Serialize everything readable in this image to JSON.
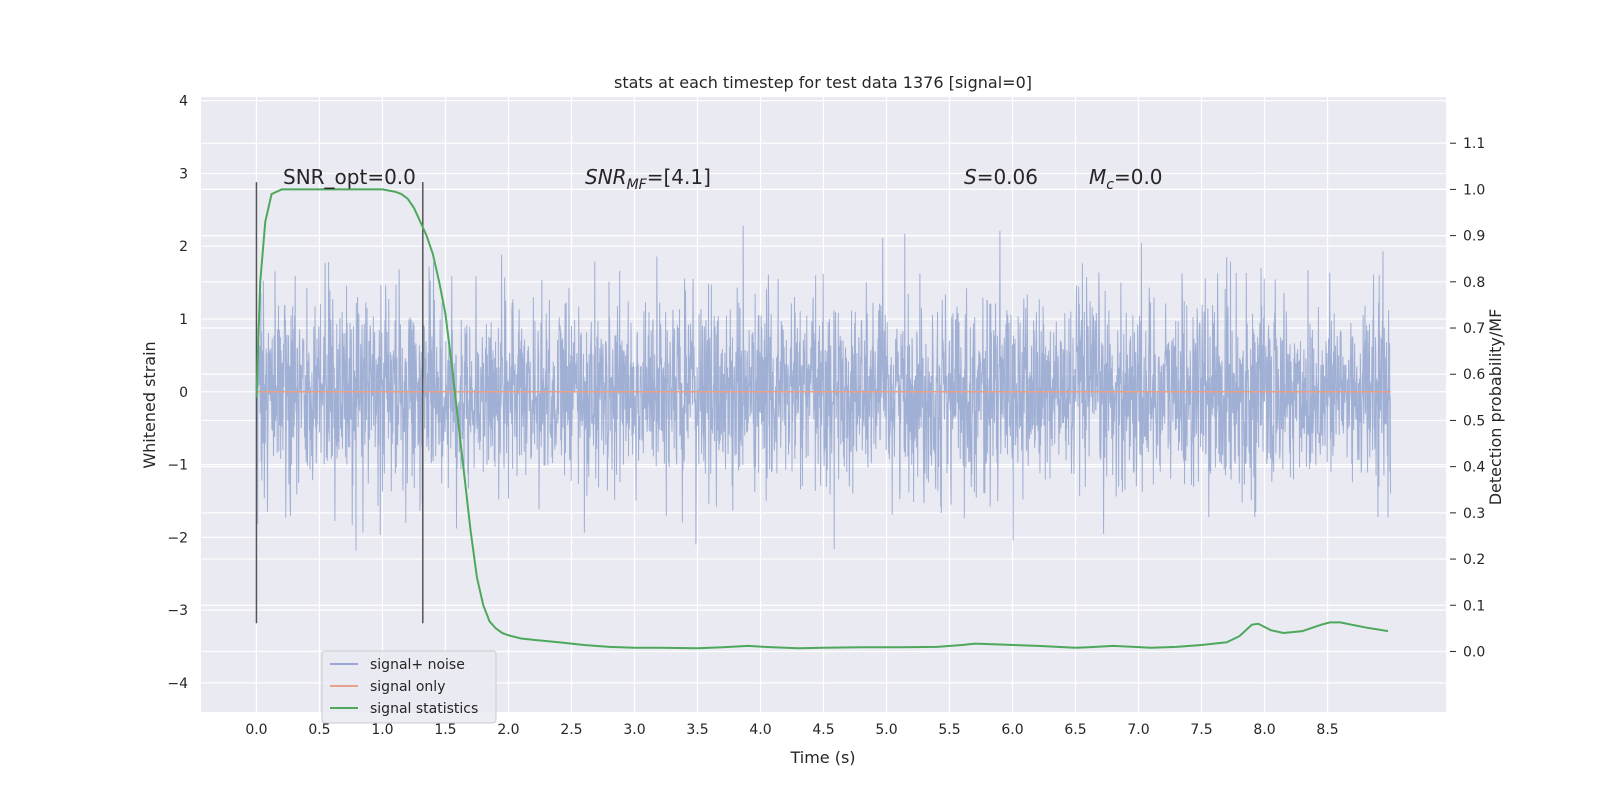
{
  "chart_data": {
    "type": "line",
    "title": "stats at each timestep for test data 1376 [signal=0]",
    "xlabel": "Time (s)",
    "ylabel": "Whitened strain",
    "y2label": "Detection probability/MF",
    "xlim": [
      -0.44,
      9.44
    ],
    "ylim": [
      -4.4,
      4.05
    ],
    "y2lim": [
      -0.131,
      1.2
    ],
    "xticks": [
      "0.0",
      "0.5",
      "1.0",
      "1.5",
      "2.0",
      "2.5",
      "3.0",
      "3.5",
      "4.0",
      "4.5",
      "5.0",
      "5.5",
      "6.0",
      "6.5",
      "7.0",
      "7.5",
      "8.0",
      "8.5"
    ],
    "yticks": [
      "4",
      "3",
      "2",
      "1",
      "0",
      "−1",
      "−2",
      "−3",
      "−4"
    ],
    "y2ticks": [
      "1.1",
      "1.0",
      "0.9",
      "0.8",
      "0.7",
      "0.6",
      "0.5",
      "0.4",
      "0.3",
      "0.2",
      "0.1",
      "0.0"
    ],
    "annotations": {
      "snr_opt": "SNR_opt=0.0",
      "snr_mf_base": "SNR",
      "snr_mf_sub": "MF",
      "snr_mf_rest": "=[4.1]",
      "s_base": "S",
      "s_rest": "=0.06",
      "mc_base": "M",
      "mc_sub": "c",
      "mc_rest": "=0.0"
    },
    "window_markers": [
      0.0,
      1.32
    ],
    "series": [
      {
        "name": "signal+ noise",
        "color": "#98a8d0",
        "description": "whitened noise, std ~0.65, t from 0 to 9.0 s",
        "noise_std": 0.65,
        "t_start": 0.0,
        "t_end": 9.0
      },
      {
        "name": "signal only",
        "color": "#e8a28c",
        "values_constant": 0.0
      },
      {
        "name": "signal statistics",
        "color": "#4ea85c",
        "axis": "right",
        "t": [
          0.0,
          0.03,
          0.07,
          0.12,
          0.2,
          0.3,
          0.5,
          0.7,
          0.9,
          1.0,
          1.1,
          1.15,
          1.2,
          1.25,
          1.3,
          1.35,
          1.4,
          1.45,
          1.5,
          1.55,
          1.6,
          1.65,
          1.7,
          1.75,
          1.8,
          1.85,
          1.9,
          1.95,
          2.0,
          2.1,
          2.2,
          2.4,
          2.6,
          2.8,
          3.0,
          3.2,
          3.5,
          3.7,
          3.9,
          4.1,
          4.3,
          4.5,
          4.8,
          5.1,
          5.4,
          5.6,
          5.7,
          5.9,
          6.2,
          6.5,
          6.6,
          6.8,
          7.1,
          7.3,
          7.5,
          7.7,
          7.8,
          7.9,
          7.95,
          8.05,
          8.15,
          8.3,
          8.45,
          8.52,
          8.6,
          8.8,
          8.98
        ],
        "values": [
          0.55,
          0.8,
          0.93,
          0.99,
          1.0,
          1.0,
          1.0,
          1.0,
          1.0,
          1.0,
          0.995,
          0.99,
          0.98,
          0.96,
          0.93,
          0.9,
          0.86,
          0.8,
          0.73,
          0.62,
          0.5,
          0.38,
          0.26,
          0.16,
          0.1,
          0.065,
          0.05,
          0.04,
          0.035,
          0.028,
          0.025,
          0.02,
          0.014,
          0.01,
          0.008,
          0.008,
          0.007,
          0.009,
          0.012,
          0.009,
          0.007,
          0.008,
          0.009,
          0.009,
          0.01,
          0.014,
          0.017,
          0.015,
          0.012,
          0.008,
          0.009,
          0.012,
          0.008,
          0.01,
          0.014,
          0.02,
          0.033,
          0.058,
          0.06,
          0.046,
          0.04,
          0.044,
          0.058,
          0.063,
          0.063,
          0.052,
          0.044
        ]
      }
    ],
    "legend": {
      "placement": "lower-left",
      "entries": [
        "signal+ noise",
        "signal only",
        "signal statistics"
      ]
    },
    "grid": true,
    "colors": {
      "plot_bg": "#eaeaf2",
      "grid": "#ffffff",
      "marker": "#555555"
    }
  }
}
